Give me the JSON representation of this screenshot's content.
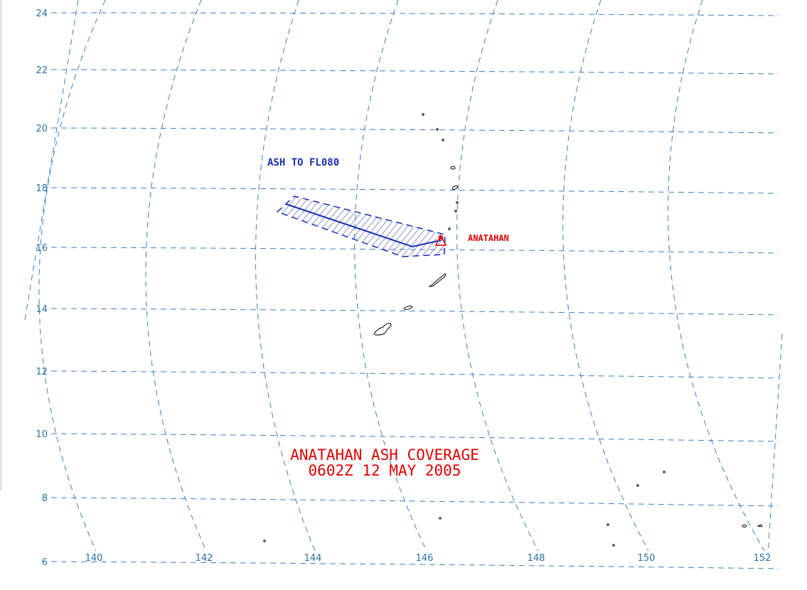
{
  "map": {
    "title": [
      "ANATAHAN ASH COVERAGE",
      "0602Z 12 MAY 2005"
    ],
    "ash_label": "ASH TO FL080",
    "volcano_label": "ANATAHAN",
    "latitude_labels": [
      "24",
      "22",
      "20",
      "18",
      "16",
      "14",
      "12",
      "10",
      "8",
      "6"
    ],
    "longitude_labels": [
      "140",
      "142",
      "144",
      "146",
      "148",
      "150",
      "152"
    ]
  }
}
